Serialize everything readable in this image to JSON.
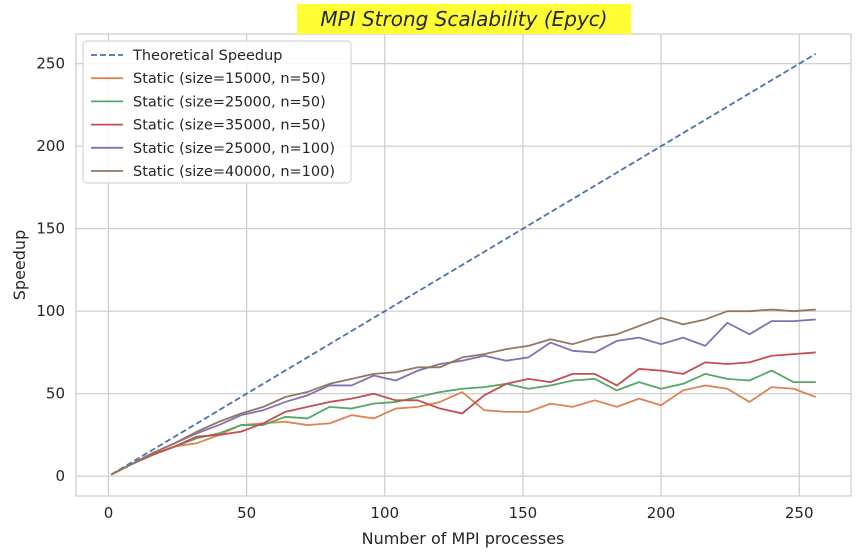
{
  "chart_data": {
    "type": "line",
    "title": "MPI Strong Scalability (Epyc)",
    "xlabel": "Number of MPI processes",
    "ylabel": "Speedup",
    "xlim": [
      -11.75,
      268.75
    ],
    "ylim": [
      -12,
      268
    ],
    "xticks": [
      0,
      50,
      100,
      150,
      200,
      250
    ],
    "yticks": [
      0,
      50,
      100,
      150,
      200,
      250
    ],
    "grid": true,
    "legend_position": "top-left",
    "title_highlight_color": "#ffff33",
    "x": [
      1,
      8,
      16,
      24,
      32,
      40,
      48,
      56,
      64,
      72,
      80,
      88,
      96,
      104,
      112,
      120,
      128,
      136,
      144,
      152,
      160,
      168,
      176,
      184,
      192,
      200,
      208,
      216,
      224,
      232,
      240,
      248,
      256
    ],
    "series": [
      {
        "name": "Theoretical Speedup",
        "color": "#4c72b0",
        "dashed": true,
        "x": [
          1,
          256
        ],
        "values": [
          1,
          256
        ]
      },
      {
        "name": "Static (size=15000, n=50)",
        "color": "#dd8452",
        "values": [
          1,
          7,
          13,
          18,
          20,
          25,
          31,
          32,
          33,
          31,
          32,
          37,
          35,
          41,
          42,
          45,
          51,
          40,
          39,
          39,
          44,
          42,
          46,
          42,
          47,
          43,
          52,
          55,
          53,
          45,
          54,
          53,
          48
        ]
      },
      {
        "name": "Static (size=25000, n=50)",
        "color": "#55a868",
        "values": [
          1,
          7,
          13,
          18,
          23,
          26,
          31,
          31,
          36,
          35,
          42,
          41,
          44,
          45,
          48,
          51,
          53,
          54,
          56,
          53,
          55,
          58,
          59,
          52,
          57,
          53,
          56,
          62,
          59,
          58,
          64,
          57,
          57
        ]
      },
      {
        "name": "Static (size=35000, n=50)",
        "color": "#c44e52",
        "values": [
          1,
          7,
          13,
          18,
          24,
          25,
          27,
          32,
          39,
          42,
          45,
          47,
          50,
          46,
          46,
          41,
          38,
          49,
          56,
          59,
          57,
          62,
          62,
          55,
          65,
          64,
          62,
          69,
          68,
          69,
          73,
          74,
          75
        ]
      },
      {
        "name": "Static (size=25000, n=100)",
        "color": "#8172b3",
        "values": [
          1,
          7,
          14,
          20,
          26,
          31,
          37,
          40,
          45,
          49,
          55,
          55,
          61,
          58,
          64,
          68,
          70,
          73,
          70,
          72,
          81,
          76,
          75,
          82,
          84,
          80,
          84,
          79,
          93,
          86,
          94,
          94,
          95
        ]
      },
      {
        "name": "Static (size=40000, n=100)",
        "color": "#937860",
        "values": [
          1,
          7,
          14,
          20,
          27,
          33,
          38,
          42,
          48,
          51,
          56,
          59,
          62,
          63,
          66,
          66,
          72,
          74,
          77,
          79,
          83,
          80,
          84,
          86,
          91,
          96,
          92,
          95,
          100,
          100,
          101,
          100,
          101
        ]
      }
    ]
  }
}
